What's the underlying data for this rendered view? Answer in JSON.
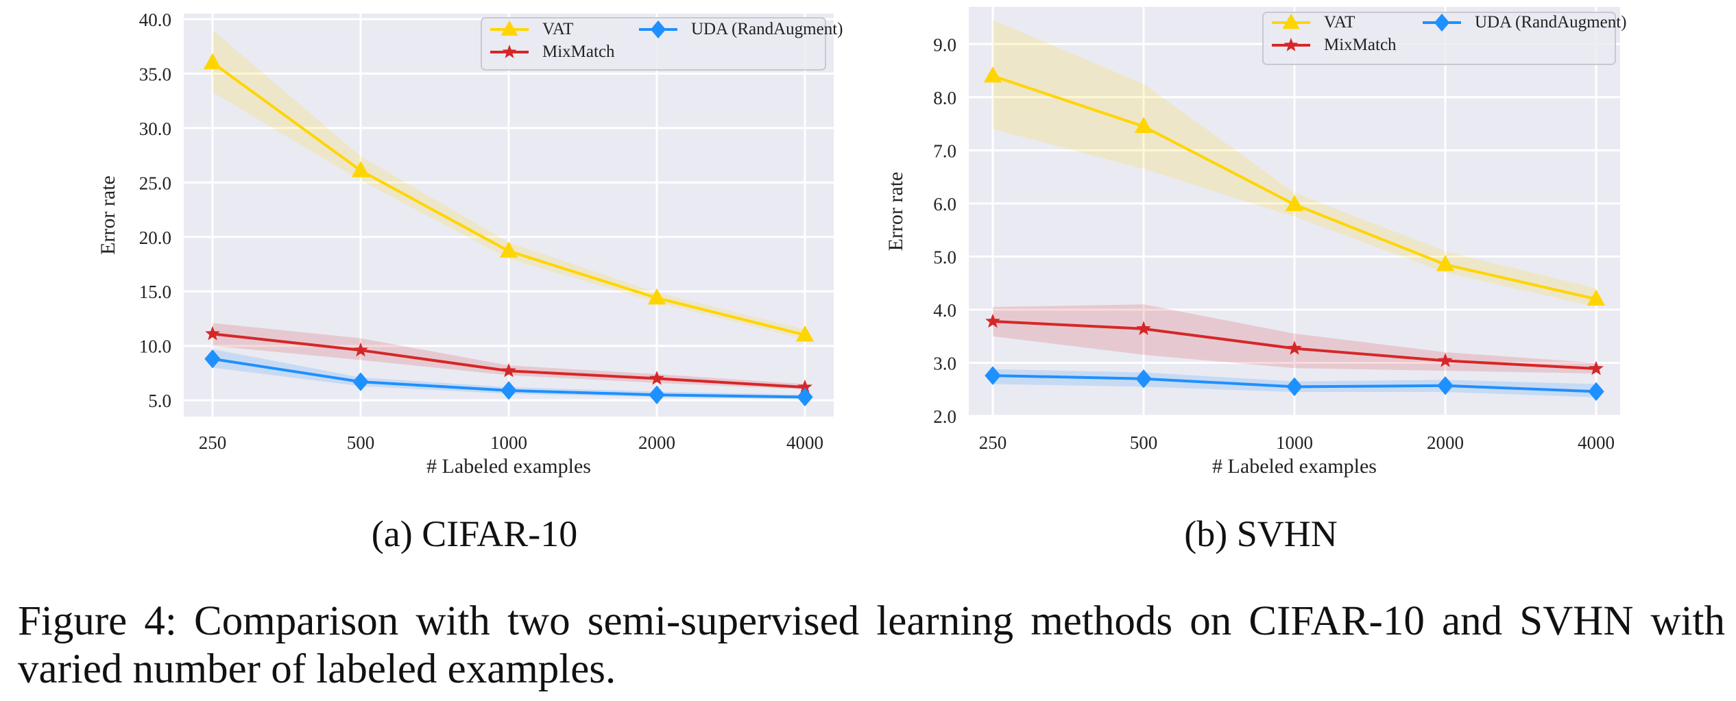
{
  "colors": {
    "plot_bg": "#eaeaf2",
    "grid": "#ffffff",
    "vat": "#ffd500",
    "mixmatch": "#d62728",
    "uda": "#1e90ff"
  },
  "chart_data": [
    {
      "type": "line",
      "subtitle": "(a) CIFAR-10",
      "xlabel": "# Labeled examples",
      "ylabel": "Error rate",
      "categories": [
        "250",
        "500",
        "1000",
        "2000",
        "4000"
      ],
      "ylim": [
        3.5,
        40.5
      ],
      "yticks": [
        "5.0",
        "10.0",
        "15.0",
        "20.0",
        "25.0",
        "30.0",
        "35.0",
        "40.0"
      ],
      "grid": true,
      "legend": "top-right",
      "series": [
        {
          "name": "VAT",
          "marker": "triangle",
          "color": "#ffd500",
          "values": [
            36.0,
            26.1,
            18.7,
            14.4,
            11.0
          ],
          "band_low": [
            33.3,
            25.2,
            18.0,
            14.0,
            10.6
          ],
          "band_high": [
            39.0,
            27.4,
            19.5,
            14.9,
            11.5
          ]
        },
        {
          "name": "MixMatch",
          "marker": "star",
          "color": "#d62728",
          "values": [
            11.1,
            9.6,
            7.7,
            7.0,
            6.2
          ],
          "band_low": [
            10.0,
            8.7,
            7.3,
            6.6,
            6.0
          ],
          "band_high": [
            12.1,
            10.7,
            8.2,
            7.4,
            6.5
          ]
        },
        {
          "name": "UDA (RandAugment)",
          "marker": "diamond",
          "color": "#1e90ff",
          "values": [
            8.8,
            6.7,
            5.9,
            5.5,
            5.3
          ],
          "band_low": [
            8.0,
            6.3,
            5.6,
            5.3,
            5.1
          ],
          "band_high": [
            9.7,
            7.1,
            6.2,
            5.8,
            5.5
          ]
        }
      ]
    },
    {
      "type": "line",
      "subtitle": "(b) SVHN",
      "xlabel": "# Labeled examples",
      "ylabel": "Error rate",
      "categories": [
        "250",
        "500",
        "1000",
        "2000",
        "4000"
      ],
      "ylim": [
        2.0,
        9.7
      ],
      "yticks": [
        "2.0",
        "3.0",
        "4.0",
        "5.0",
        "6.0",
        "7.0",
        "8.0",
        "9.0"
      ],
      "grid": true,
      "legend": "top-right",
      "series": [
        {
          "name": "VAT",
          "marker": "triangle",
          "color": "#ffd500",
          "values": [
            8.4,
            7.45,
            5.98,
            4.85,
            4.2
          ],
          "band_low": [
            7.4,
            6.65,
            5.75,
            4.7,
            4.05
          ],
          "band_high": [
            9.45,
            8.25,
            6.2,
            5.1,
            4.4
          ]
        },
        {
          "name": "MixMatch",
          "marker": "star",
          "color": "#d62728",
          "values": [
            3.78,
            3.64,
            3.27,
            3.04,
            2.89
          ],
          "band_low": [
            3.5,
            3.15,
            2.9,
            2.85,
            2.8
          ],
          "band_high": [
            4.05,
            4.1,
            3.55,
            3.2,
            3.0
          ]
        },
        {
          "name": "UDA (RandAugment)",
          "marker": "diamond",
          "color": "#1e90ff",
          "values": [
            2.76,
            2.7,
            2.55,
            2.57,
            2.46
          ],
          "band_low": [
            2.6,
            2.55,
            2.45,
            2.45,
            2.35
          ],
          "band_high": [
            2.88,
            2.82,
            2.65,
            2.68,
            2.6
          ]
        }
      ]
    }
  ],
  "caption": "Figure 4: Comparison with two semi-supervised learning methods on CIFAR-10 and SVHN with varied number of labeled examples."
}
